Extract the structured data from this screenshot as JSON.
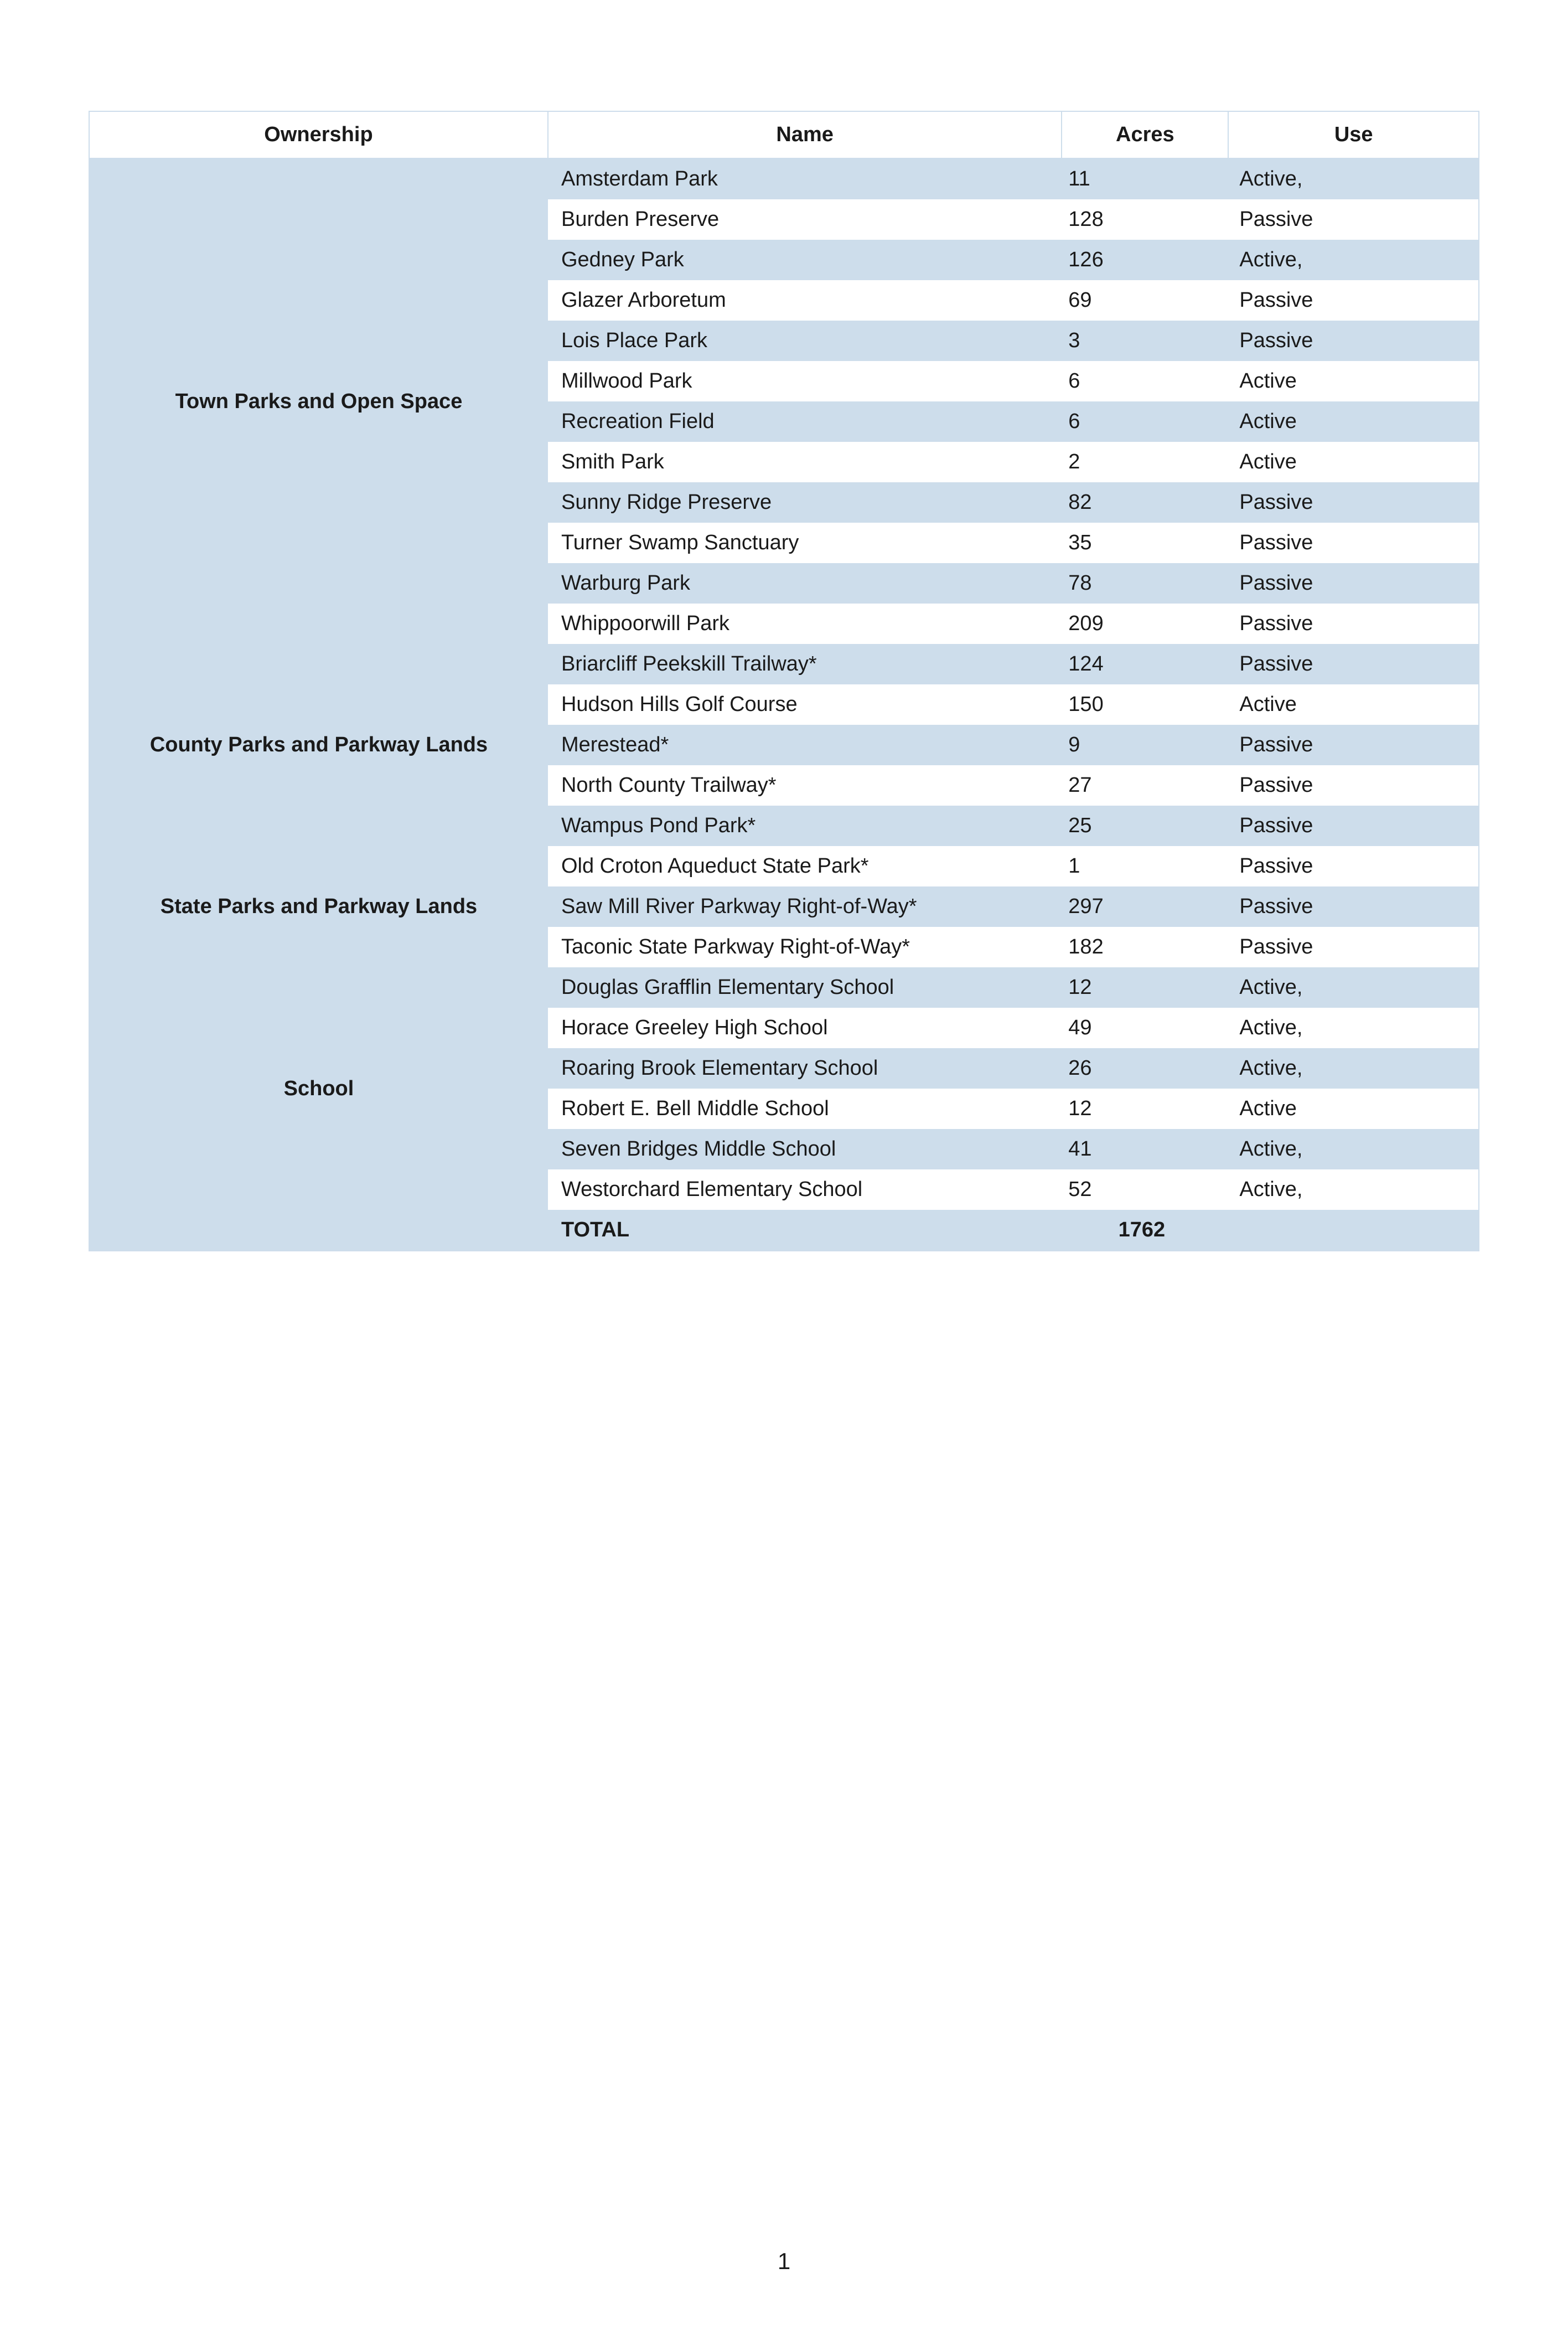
{
  "table": {
    "columns": [
      "Ownership",
      "Name",
      "Acres",
      "Use"
    ],
    "groups": [
      {
        "ownership": "Town Parks and Open Space",
        "rows": [
          {
            "name": "Amsterdam Park",
            "acres": "11",
            "use": "Active,"
          },
          {
            "name": "Burden Preserve",
            "acres": "128",
            "use": "Passive"
          },
          {
            "name": "Gedney Park",
            "acres": "126",
            "use": "Active,"
          },
          {
            "name": "Glazer Arboretum",
            "acres": "69",
            "use": "Passive"
          },
          {
            "name": "Lois Place Park",
            "acres": "3",
            "use": "Passive"
          },
          {
            "name": "Millwood Park",
            "acres": "6",
            "use": "Active"
          },
          {
            "name": "Recreation Field",
            "acres": "6",
            "use": "Active"
          },
          {
            "name": "Smith Park",
            "acres": "2",
            "use": "Active"
          },
          {
            "name": "Sunny Ridge Preserve",
            "acres": "82",
            "use": "Passive"
          },
          {
            "name": "Turner Swamp Sanctuary",
            "acres": "35",
            "use": "Passive"
          },
          {
            "name": "Warburg Park",
            "acres": "78",
            "use": "Passive"
          },
          {
            "name": "Whippoorwill Park",
            "acres": "209",
            "use": "Passive"
          }
        ]
      },
      {
        "ownership": "County Parks and Parkway Lands",
        "rows": [
          {
            "name": "Briarcliff Peekskill Trailway*",
            "acres": "124",
            "use": "Passive"
          },
          {
            "name": "Hudson Hills Golf Course",
            "acres": "150",
            "use": "Active"
          },
          {
            "name": "Merestead*",
            "acres": "9",
            "use": "Passive"
          },
          {
            "name": "North County Trailway*",
            "acres": "27",
            "use": "Passive"
          },
          {
            "name": "Wampus Pond Park*",
            "acres": "25",
            "use": "Passive"
          }
        ]
      },
      {
        "ownership": "State Parks and Parkway Lands",
        "rows": [
          {
            "name": "Old Croton Aqueduct State Park*",
            "acres": "1",
            "use": "Passive"
          },
          {
            "name": "Saw Mill River Parkway Right-of-Way*",
            "acres": "297",
            "use": "Passive"
          },
          {
            "name": "Taconic State Parkway Right-of-Way*",
            "acres": "182",
            "use": "Passive"
          }
        ]
      },
      {
        "ownership": "School",
        "rows": [
          {
            "name": "Douglas Grafflin Elementary School",
            "acres": "12",
            "use": "Active,"
          },
          {
            "name": "Horace Greeley High School",
            "acres": "49",
            "use": "Active,"
          },
          {
            "name": "Roaring Brook Elementary School",
            "acres": "26",
            "use": "Active,"
          },
          {
            "name": "Robert E. Bell Middle School",
            "acres": "12",
            "use": "Active"
          },
          {
            "name": "Seven Bridges Middle School",
            "acres": "41",
            "use": "Active,"
          },
          {
            "name": "Westorchard Elementary School",
            "acres": "52",
            "use": "Active,"
          }
        ]
      }
    ],
    "total": {
      "label": "TOTAL",
      "acres": "1762"
    }
  },
  "page_number": "1",
  "styling": {
    "header_bg": "#ffffff",
    "stripe_odd_bg": "#cdddeb",
    "stripe_even_bg": "#ffffff",
    "border_color": "#cdddeb",
    "text_color": "#1a1a1a",
    "font_family": "Trebuchet MS",
    "header_fontsize": 38,
    "body_fontsize": 38
  }
}
